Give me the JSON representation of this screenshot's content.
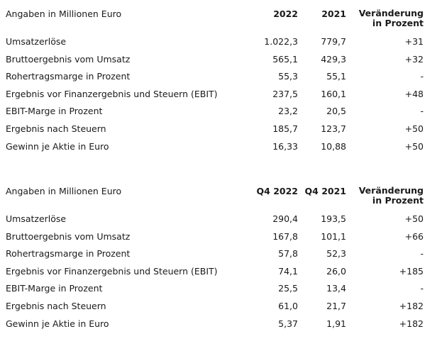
{
  "table_annual": {
    "header": {
      "label": "Angaben in Millionen Euro",
      "col1": "2022",
      "col2": "2021",
      "col3_line1": "Veränderung",
      "col3_line2": "in Prozent"
    },
    "rows": [
      {
        "label": "Umsatzerlöse",
        "v1": "1.022,3",
        "v2": "779,7",
        "v3": "+31"
      },
      {
        "label": "Bruttoergebnis vom Umsatz",
        "v1": "565,1",
        "v2": "429,3",
        "v3": "+32"
      },
      {
        "label": "Rohertragsmarge in Prozent",
        "v1": "55,3",
        "v2": "55,1",
        "v3": "-"
      },
      {
        "label": "Ergebnis vor Finanzergebnis und Steuern (EBIT)",
        "v1": "237,5",
        "v2": "160,1",
        "v3": "+48"
      },
      {
        "label": "EBIT-Marge in Prozent",
        "v1": "23,2",
        "v2": "20,5",
        "v3": "-"
      },
      {
        "label": "Ergebnis nach Steuern",
        "v1": "185,7",
        "v2": "123,7",
        "v3": "+50"
      },
      {
        "label": "Gewinn je Aktie in Euro",
        "v1": "16,33",
        "v2": "10,88",
        "v3": "+50"
      }
    ]
  },
  "table_q4": {
    "header": {
      "label": "Angaben in Millionen Euro",
      "col1": "Q4 2022",
      "col2": "Q4 2021",
      "col3_line1": "Veränderung",
      "col3_line2": "in Prozent"
    },
    "rows": [
      {
        "label": "Umsatzerlöse",
        "v1": "290,4",
        "v2": "193,5",
        "v3": "+50"
      },
      {
        "label": "Bruttoergebnis vom Umsatz",
        "v1": "167,8",
        "v2": "101,1",
        "v3": "+66"
      },
      {
        "label": "Rohertragsmarge in Prozent",
        "v1": "57,8",
        "v2": "52,3",
        "v3": "-"
      },
      {
        "label": "Ergebnis vor Finanzergebnis und Steuern (EBIT)",
        "v1": "74,1",
        "v2": "26,0",
        "v3": "+185"
      },
      {
        "label": "EBIT-Marge in Prozent",
        "v1": "25,5",
        "v2": "13,4",
        "v3": "-"
      },
      {
        "label": "Ergebnis nach Steuern",
        "v1": "61,0",
        "v2": "21,7",
        "v3": "+182"
      },
      {
        "label": "Gewinn je Aktie in Euro",
        "v1": "5,37",
        "v2": "1,91",
        "v3": "+182"
      }
    ]
  }
}
